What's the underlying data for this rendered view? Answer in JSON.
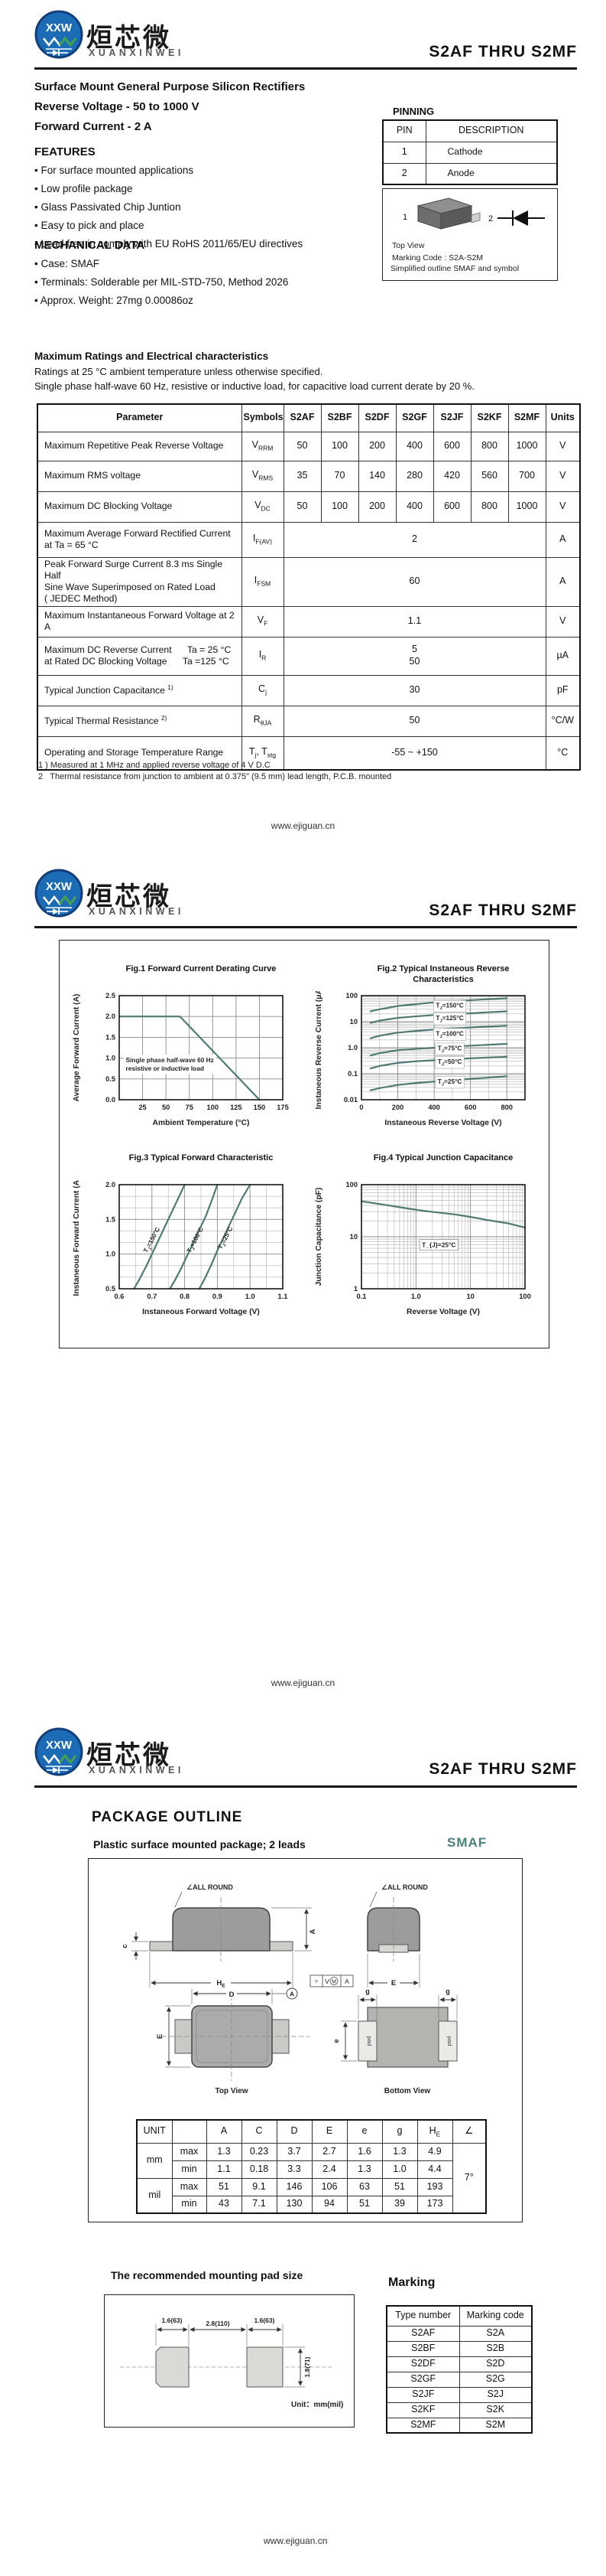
{
  "doc": {
    "part_range": "S2AF  THRU  S2MF",
    "footer_url": "www.ejiguan.cn"
  },
  "brand": {
    "cn": "烜芯微",
    "en": "XUANXINWEI",
    "abbr": "XXW"
  },
  "colors": {
    "accent_teal": "#47807a",
    "curve": "#4e7a73",
    "logo_blue": "#1b6cb5",
    "logo_green": "#3fa23c"
  },
  "page1": {
    "titles": [
      "Surface Mount General Purpose Silicon Rectifiers",
      "Reverse Voltage - 50 to 1000 V",
      "Forward Current - 2 A"
    ],
    "features": {
      "heading": "FEATURES",
      "items": [
        "For surface mounted applications",
        "Low profile package",
        "Glass Passivated Chip Juntion",
        "Easy to pick and place",
        "Lead free in comply with EU RoHS 2011/65/EU directives"
      ]
    },
    "mechanical": {
      "heading": "MECHANICAL DATA",
      "items": [
        "Case: SMAF",
        "Terminals: Solderable per MIL-STD-750, Method 2026",
        "Approx. Weight: 27mg  0.00086oz"
      ]
    },
    "pinning": {
      "heading": "PINNING",
      "headers": [
        "PIN",
        "DESCRIPTION"
      ],
      "rows": [
        [
          "1",
          "Cathode"
        ],
        [
          "2",
          "Anode"
        ]
      ],
      "pin1": "1",
      "pin2": "2",
      "captions": [
        "Top View",
        "Marking Code :  S2A-S2M",
        "Simplified outline SMAF and symbol"
      ]
    },
    "ratings": {
      "heading": "Maximum Ratings and Electrical characteristics",
      "sub1": "Ratings at 25 °C ambient temperature unless otherwise specified.",
      "sub2": "Single phase half-wave 60 Hz, resistive or inductive load, for capacitive load current derate by 20 %.",
      "headers": [
        "Parameter",
        "Symbols",
        "S2AF",
        "S2BF",
        "S2DF",
        "S2GF",
        "S2JF",
        "S2KF",
        "S2MF",
        "Units"
      ],
      "rows": [
        {
          "param": "Maximum Repetitive Peak Reverse Voltage",
          "symbol": "V_{RRM}",
          "values": [
            "50",
            "100",
            "200",
            "400",
            "600",
            "800",
            "1000"
          ],
          "unit": "V"
        },
        {
          "param": "Maximum RMS voltage",
          "symbol": "V_{RMS}",
          "values": [
            "35",
            "70",
            "140",
            "280",
            "420",
            "560",
            "700"
          ],
          "unit": "V"
        },
        {
          "param": "Maximum DC Blocking Voltage",
          "symbol": "V_{DC}",
          "values": [
            "50",
            "100",
            "200",
            "400",
            "600",
            "800",
            "1000"
          ],
          "unit": "V"
        },
        {
          "param": "Maximum Average Forward Rectified Current\nat Ta = 65 °C",
          "symbol": "I_{F(AV)}",
          "span": "2",
          "unit": "A"
        },
        {
          "param": "Peak Forward Surge Current 8.3 ms Single Half\nSine Wave Superimposed on Rated Load\n( JEDEC Method)",
          "symbol": "I_{FSM}",
          "span": "60",
          "unit": "A"
        },
        {
          "param": "Maximum Instantaneous Forward Voltage at 2 A",
          "symbol": "V_{F}",
          "span": "1.1",
          "unit": "V"
        },
        {
          "param": "Maximum DC Reverse Current      Ta = 25 °C\nat Rated DC Blocking Voltage      Ta =125 °C",
          "symbol": "I_{R}",
          "span": "5\n50",
          "unit": "µA"
        },
        {
          "param": "Typical Junction Capacitance ^{1)}",
          "symbol": "C_{j}",
          "span": "30",
          "unit": "pF"
        },
        {
          "param": "Typical Thermal Resistance ^{2)}",
          "symbol": "R_{θJA}",
          "span": "50",
          "unit": "°C/W"
        },
        {
          "param": "Operating and Storage Temperature Range",
          "symbol": "T_{j}, T_{stg}",
          "span": "-55 ~ +150",
          "unit": "°C"
        }
      ],
      "notes": [
        "1 ) Measured at 1 MHz and applied reverse voltage of 4 V D.C",
        "2   Thermal resistance from junction to ambient at 0.375\" (9.5 mm) lead length, P.C.B. mounted"
      ]
    }
  },
  "chart_data": [
    {
      "type": "line",
      "title": "Fig.1  Forward Current Derating Curve",
      "xlabel": "Ambient Temperature (°C)",
      "ylabel": "Average Forward Current (A)",
      "xscale": "linear",
      "yscale": "linear",
      "xlim": [
        0,
        175
      ],
      "ylim": [
        0,
        2.5
      ],
      "xticks": [
        25,
        50,
        75,
        100,
        125,
        150,
        175
      ],
      "yticks": [
        0,
        0.5,
        1,
        1.5,
        2,
        2.5
      ],
      "ytick_labels": [
        "0.0",
        "0.5",
        "1.0",
        "1.5",
        "2.0",
        "2.5"
      ],
      "series": [
        {
          "name": "forward-current-derating",
          "points": [
            [
              0,
              2
            ],
            [
              65,
              2
            ],
            [
              150,
              0
            ]
          ]
        }
      ],
      "annotations": [
        {
          "text": "Single phase half-wave 60 Hz\nresistive or inductive load",
          "fx": 0.04,
          "fy": 0.64,
          "boxed": false
        }
      ]
    },
    {
      "type": "line",
      "title": "Fig.2  Typical Instaneous Reverse\nCharacteristics",
      "xlabel": "Instaneous Reverse Voltage (V)",
      "ylabel": "Instaneous Reverse Current (μA)",
      "xscale": "linear",
      "yscale": "log",
      "xlim": [
        0,
        900
      ],
      "ylim": [
        0.01,
        100
      ],
      "xticks": [
        0,
        200,
        400,
        600,
        800
      ],
      "xminor_step": 100,
      "yticks": [
        0.01,
        0.1,
        1,
        10,
        100
      ],
      "ytick_labels": [
        "0.01",
        "0.1",
        "1.0",
        "10",
        "100"
      ],
      "series": [
        {
          "name": "TJ=150C",
          "label": "T_{J}=150°C",
          "label_fx": 0.54,
          "label_fy": 0.115,
          "points": [
            [
              50,
              25
            ],
            [
              100,
              30
            ],
            [
              200,
              40
            ],
            [
              300,
              47
            ],
            [
              400,
              55
            ],
            [
              500,
              61
            ],
            [
              600,
              67
            ],
            [
              700,
              73
            ],
            [
              800,
              80
            ]
          ]
        },
        {
          "name": "TJ=125C",
          "label": "T_{J}=125°C",
          "label_fx": 0.54,
          "label_fy": 0.235,
          "points": [
            [
              50,
              9
            ],
            [
              100,
              11
            ],
            [
              200,
              14
            ],
            [
              300,
              16
            ],
            [
              400,
              18
            ],
            [
              500,
              19.5
            ],
            [
              600,
              21
            ],
            [
              700,
              23
            ],
            [
              800,
              25
            ]
          ]
        },
        {
          "name": "TJ=100C",
          "label": "T_{J}=100°C",
          "label_fx": 0.54,
          "label_fy": 0.385,
          "points": [
            [
              50,
              2.3
            ],
            [
              100,
              2.9
            ],
            [
              200,
              3.8
            ],
            [
              300,
              4.4
            ],
            [
              400,
              5
            ],
            [
              500,
              5.5
            ],
            [
              600,
              6
            ],
            [
              700,
              6.5
            ],
            [
              800,
              7
            ]
          ]
        },
        {
          "name": "TJ=75C",
          "label": "T_{J}=75°C",
          "label_fx": 0.54,
          "label_fy": 0.525,
          "points": [
            [
              50,
              0.5
            ],
            [
              100,
              0.62
            ],
            [
              200,
              0.8
            ],
            [
              300,
              0.9
            ],
            [
              400,
              1.0
            ],
            [
              500,
              1.1
            ],
            [
              600,
              1.2
            ],
            [
              700,
              1.3
            ],
            [
              800,
              1.4
            ]
          ]
        },
        {
          "name": "TJ=50C",
          "label": "T_{J}=50°C",
          "label_fx": 0.54,
          "label_fy": 0.655,
          "points": [
            [
              50,
              0.16
            ],
            [
              100,
              0.2
            ],
            [
              200,
              0.26
            ],
            [
              300,
              0.3
            ],
            [
              400,
              0.33
            ],
            [
              500,
              0.36
            ],
            [
              600,
              0.39
            ],
            [
              700,
              0.42
            ],
            [
              800,
              0.45
            ]
          ]
        },
        {
          "name": "TJ=25C",
          "label": "T_{J}=25°C",
          "label_fx": 0.54,
          "label_fy": 0.845,
          "points": [
            [
              50,
              0.023
            ],
            [
              100,
              0.028
            ],
            [
              200,
              0.037
            ],
            [
              300,
              0.044
            ],
            [
              400,
              0.05
            ],
            [
              500,
              0.056
            ],
            [
              600,
              0.063
            ],
            [
              700,
              0.071
            ],
            [
              800,
              0.08
            ]
          ]
        }
      ]
    },
    {
      "type": "line",
      "title": "Fig.3  Typical Forward Characteristic",
      "xlabel": "Instaneous Forward Voltage (V)",
      "ylabel": "Instaneous Forward Current (A)",
      "xscale": "linear",
      "yscale": "linear",
      "xlim": [
        0.6,
        1.1
      ],
      "ylim": [
        0.5,
        2.0
      ],
      "xticks": [
        0.6,
        0.7,
        0.8,
        0.9,
        1.0,
        1.1
      ],
      "xtick_labels": [
        "0.6",
        "0.7",
        "0.8",
        "0.9",
        "1.0",
        "1.1"
      ],
      "xminor": [
        0.65,
        0.75,
        0.85,
        0.95,
        1.05
      ],
      "yticks": [
        0.5,
        1.0,
        1.5,
        2.0
      ],
      "ytick_labels": [
        "0.5",
        "1.0",
        "1.5",
        "2.0"
      ],
      "yminor": [
        0.667,
        0.833,
        1.167,
        1.333,
        1.667,
        1.833
      ],
      "series": [
        {
          "name": "TJ=150C",
          "label": "T_{J}=150°C",
          "label_fx": 0.21,
          "label_fy": 0.54,
          "label_rotate": -62,
          "points": [
            [
              0.645,
              0.5
            ],
            [
              0.66,
              0.62
            ],
            [
              0.68,
              0.8
            ],
            [
              0.7,
              1.0
            ],
            [
              0.725,
              1.25
            ],
            [
              0.755,
              1.55
            ],
            [
              0.785,
              1.85
            ],
            [
              0.8,
              2.0
            ]
          ]
        },
        {
          "name": "TJ=100C",
          "label": "T_{J}=100°C",
          "label_fx": 0.475,
          "label_fy": 0.54,
          "label_rotate": -62,
          "points": [
            [
              0.755,
              0.5
            ],
            [
              0.77,
              0.62
            ],
            [
              0.79,
              0.8
            ],
            [
              0.81,
              1.0
            ],
            [
              0.835,
              1.25
            ],
            [
              0.865,
              1.55
            ],
            [
              0.885,
              1.8
            ],
            [
              0.9,
              2.0
            ]
          ]
        },
        {
          "name": "TJ=25C",
          "label": "T_{J}=25°C",
          "label_fx": 0.66,
          "label_fy": 0.52,
          "label_rotate": -62,
          "points": [
            [
              0.845,
              0.5
            ],
            [
              0.862,
              0.65
            ],
            [
              0.882,
              0.85
            ],
            [
              0.9,
              1.05
            ],
            [
              0.925,
              1.3
            ],
            [
              0.95,
              1.55
            ],
            [
              0.975,
              1.8
            ],
            [
              1.0,
              2.0
            ]
          ]
        }
      ]
    },
    {
      "type": "line",
      "title": "Fig.4  Typical Junction Capacitance",
      "xlabel": "Reverse  Voltage (V)",
      "ylabel": "Junction Capacitance (pF)",
      "xscale": "log",
      "yscale": "log",
      "xlim": [
        0.1,
        100
      ],
      "ylim": [
        1,
        100
      ],
      "xticks": [
        0.1,
        1,
        10,
        100
      ],
      "xtick_labels": [
        "0.1",
        "1.0",
        "10",
        "100"
      ],
      "yticks": [
        1,
        10,
        100
      ],
      "ytick_labels": [
        "1",
        "10",
        "100"
      ],
      "series": [
        {
          "name": "junction-capacitance",
          "points": [
            [
              0.1,
              48
            ],
            [
              0.2,
              43
            ],
            [
              0.5,
              37
            ],
            [
              1,
              33
            ],
            [
              2,
              30
            ],
            [
              5,
              27
            ],
            [
              10,
              24
            ],
            [
              20,
              21
            ],
            [
              50,
              18
            ],
            [
              100,
              15
            ]
          ]
        }
      ],
      "annotations": [
        {
          "text": "T_{J}=25°C",
          "fx": 0.37,
          "fy": 0.6,
          "boxed": true
        }
      ]
    }
  ],
  "page3": {
    "heading": "PACKAGE  OUTLINE",
    "subheading": "Plastic surface mounted package; 2 leads",
    "pkg_name": "SMAF",
    "labels": {
      "all_round": "∠ALL ROUND",
      "dim_A": "A",
      "dim_c": "c",
      "dim_HE": "H_{E}",
      "dim_E": "E",
      "dim_D": "D",
      "dim_e": "e",
      "dim_g": "g",
      "datum_a": "A",
      "datum_c1": "÷",
      "datum_c2": "V",
      "datum_c2b": "M",
      "datum_c3": "A",
      "pad": "pad",
      "top_view": "Top View",
      "bottom_view": "Bottom  View"
    },
    "dims_table": {
      "col_headers": [
        "UNIT",
        "",
        "A",
        "C",
        "D",
        "E",
        "e",
        "g",
        "H_{E}",
        "∠"
      ],
      "rows": [
        {
          "unit": "mm",
          "bound": "max",
          "values": [
            "1.3",
            "0.23",
            "3.7",
            "2.7",
            "1.6",
            "1.3",
            "4.9"
          ]
        },
        {
          "unit": "mm",
          "bound": "min",
          "values": [
            "1.1",
            "0.18",
            "3.3",
            "2.4",
            "1.3",
            "1.0",
            "4.4"
          ]
        },
        {
          "unit": "mil",
          "bound": "max",
          "values": [
            "51",
            "9.1",
            "146",
            "106",
            "63",
            "51",
            "193"
          ]
        },
        {
          "unit": "mil",
          "bound": "min",
          "values": [
            "43",
            "7.1",
            "130",
            "94",
            "51",
            "39",
            "173"
          ]
        }
      ],
      "angle": "7°"
    },
    "pad_section": {
      "heading": "The recommended mounting pad size",
      "dim_left": "1.6(63)",
      "dim_center": "2.8(110)",
      "dim_right": "1.6(63)",
      "dim_height": "1.8(71)",
      "unit_note": "Unit：mm(mil)"
    },
    "marking": {
      "heading": "Marking",
      "headers": [
        "Type number",
        "Marking code"
      ],
      "rows": [
        [
          "S2AF",
          "S2A"
        ],
        [
          "S2BF",
          "S2B"
        ],
        [
          "S2DF",
          "S2D"
        ],
        [
          "S2GF",
          "S2G"
        ],
        [
          "S2JF",
          "S2J"
        ],
        [
          "S2KF",
          "S2K"
        ],
        [
          "S2MF",
          "S2M"
        ]
      ]
    }
  }
}
